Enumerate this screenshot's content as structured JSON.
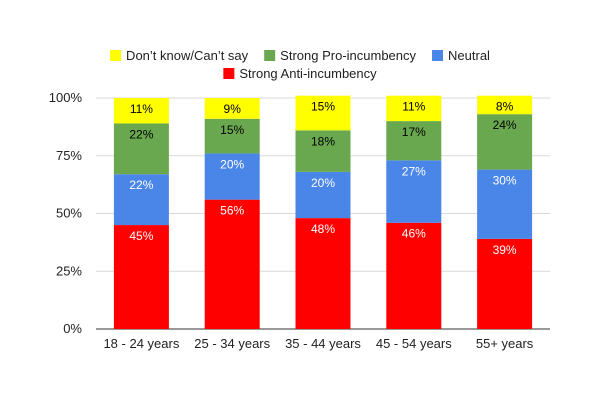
{
  "chart_data": {
    "type": "bar",
    "stacked": true,
    "categories": [
      "18 - 24 years",
      "25 - 34 years",
      "35 - 44 years",
      "45 - 54 years",
      "55+ years"
    ],
    "series": [
      {
        "name": "Strong Anti-incumbency",
        "color": "#ff0000",
        "label_color": "#ffffff",
        "values": [
          45,
          56,
          48,
          46,
          39
        ]
      },
      {
        "name": "Neutral",
        "color": "#4a86e8",
        "label_color": "#ffffff",
        "values": [
          22,
          20,
          20,
          27,
          30
        ]
      },
      {
        "name": "Strong Pro-incumbency",
        "color": "#6aa84f",
        "label_color": "#000000",
        "values": [
          22,
          15,
          18,
          17,
          24
        ]
      },
      {
        "name": "Don’t know/Can’t say",
        "color": "#ffff00",
        "label_color": "#000000",
        "values": [
          11,
          9,
          15,
          11,
          8
        ]
      }
    ],
    "value_suffix": "%",
    "yticks": [
      "0%",
      "25%",
      "50%",
      "75%",
      "100%"
    ],
    "ylim": [
      0,
      100
    ],
    "legend_position": "top",
    "legend_order": [
      "Don’t know/Can’t say",
      "Strong Pro-incumbency",
      "Neutral",
      "Strong Anti-incumbency"
    ],
    "grid": true
  }
}
